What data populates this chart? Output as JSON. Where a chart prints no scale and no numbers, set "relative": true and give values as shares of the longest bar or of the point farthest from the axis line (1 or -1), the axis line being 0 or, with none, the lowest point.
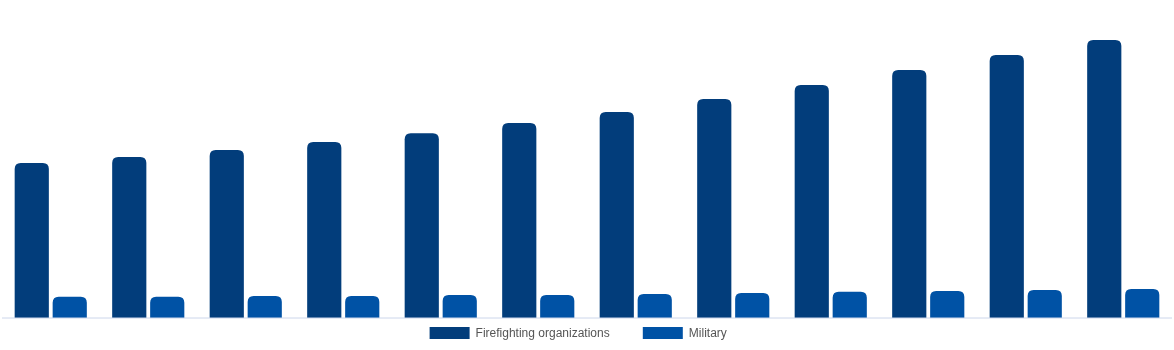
{
  "chart_data": {
    "type": "bar",
    "relative": true,
    "categories": [
      null,
      null,
      null,
      null,
      null,
      null,
      null,
      null,
      null,
      null,
      null,
      null
    ],
    "legend": "bottom",
    "series": [
      {
        "name": "Firefighting organizations",
        "color": "#023d7b",
        "values": [
          0.558,
          0.579,
          0.604,
          0.633,
          0.665,
          0.701,
          0.741,
          0.788,
          0.838,
          0.892,
          0.946,
          1
        ]
      },
      {
        "name": "Military",
        "color": "#0052a5",
        "values": [
          0.076,
          0.076,
          0.079,
          0.079,
          0.083,
          0.083,
          0.086,
          0.09,
          0.094,
          0.097,
          0.101,
          0.104
        ]
      }
    ]
  }
}
